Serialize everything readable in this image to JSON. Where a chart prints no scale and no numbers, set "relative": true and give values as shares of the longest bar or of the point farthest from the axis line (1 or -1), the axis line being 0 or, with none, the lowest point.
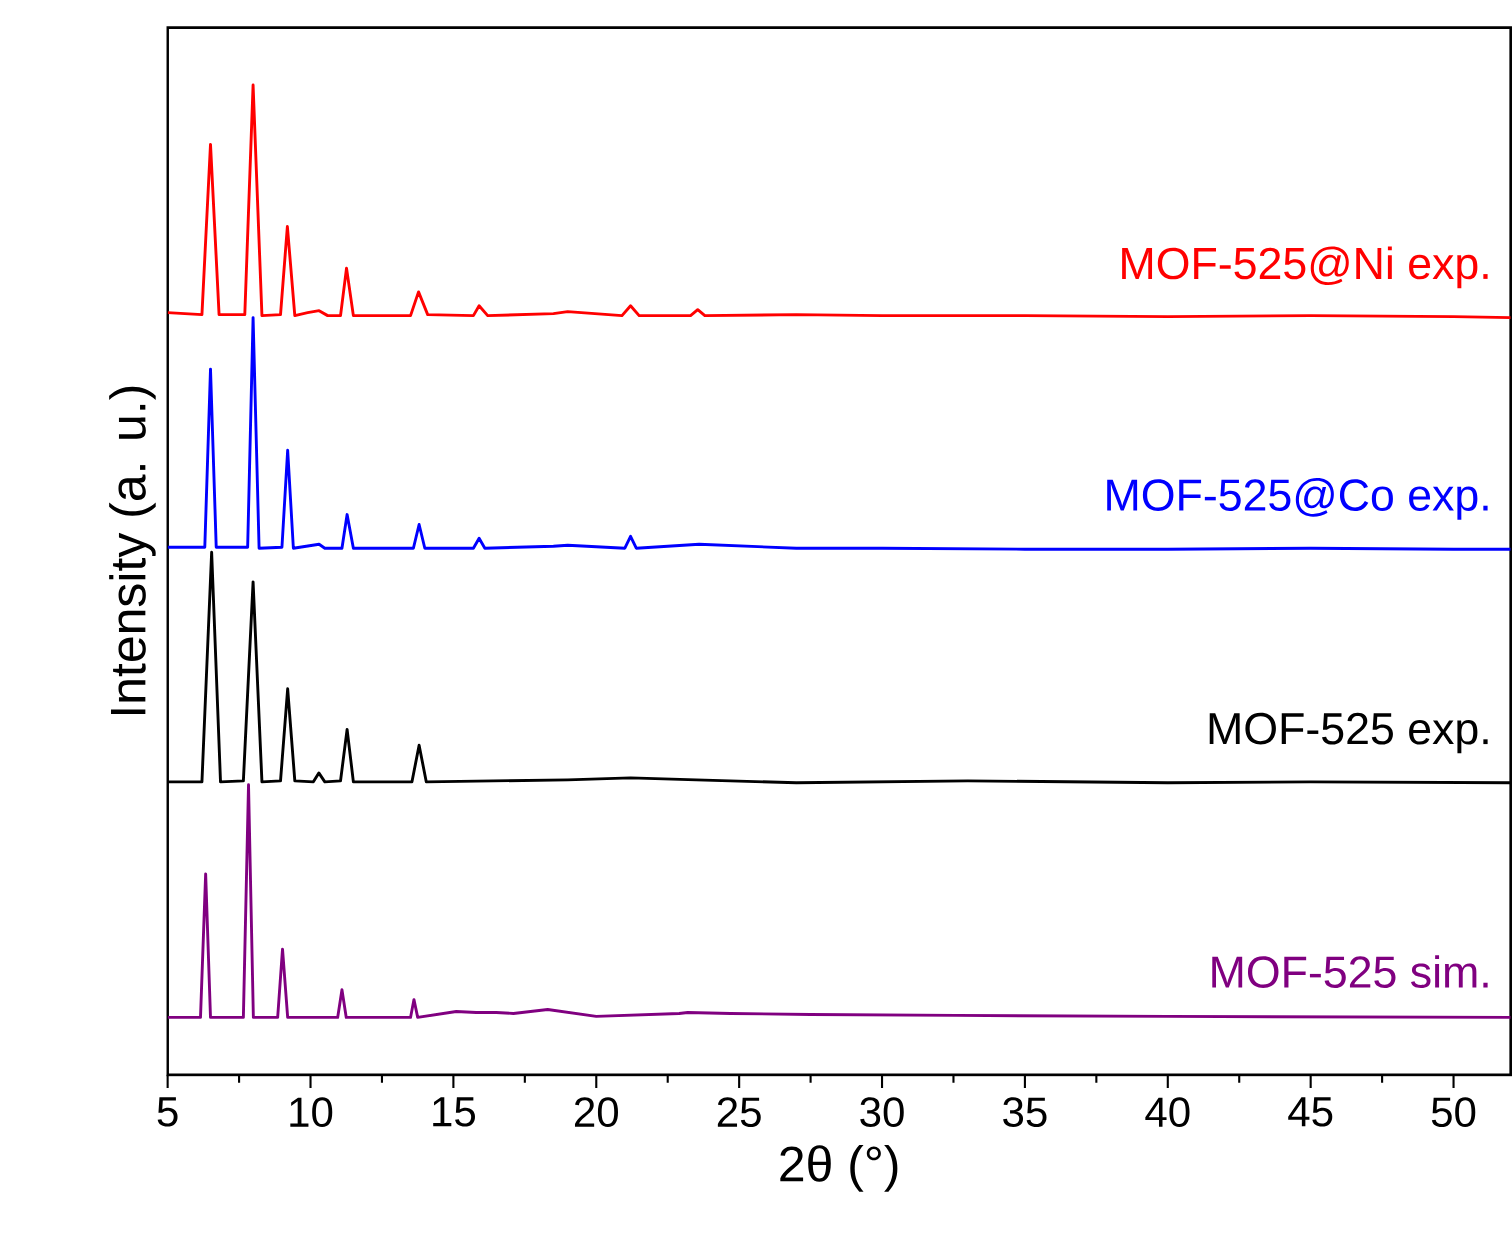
{
  "chart_data": {
    "type": "line",
    "xlabel": "2θ (°)",
    "ylabel": "Intensity (a. u.)",
    "relative": true,
    "tick_labels": "x",
    "xlim": [
      5,
      52
    ],
    "xticks": [
      5,
      10,
      15,
      20,
      25,
      30,
      35,
      40,
      45,
      50
    ],
    "series": [
      {
        "name": "MOF-525@Ni exp.",
        "color": "#ff0000",
        "x": [
          5.0,
          6.2,
          6.5,
          6.8,
          7.7,
          7.99,
          8.3,
          8.95,
          9.19,
          9.45,
          9.9,
          10.3,
          10.6,
          11.05,
          11.26,
          11.5,
          13.5,
          13.78,
          14.1,
          15.7,
          15.9,
          16.2,
          18.5,
          19.0,
          20.9,
          21.2,
          21.5,
          23.3,
          23.55,
          23.8,
          27,
          30,
          35,
          40,
          45,
          50,
          52
        ],
        "values": [
          0.77,
          0.768,
          0.94,
          0.768,
          0.768,
          1.0,
          0.767,
          0.768,
          0.857,
          0.767,
          0.77,
          0.772,
          0.767,
          0.767,
          0.815,
          0.767,
          0.767,
          0.791,
          0.768,
          0.767,
          0.777,
          0.767,
          0.769,
          0.771,
          0.767,
          0.777,
          0.767,
          0.767,
          0.773,
          0.767,
          0.768,
          0.767,
          0.767,
          0.766,
          0.767,
          0.766,
          0.765
        ]
      },
      {
        "name": "MOF-525@Co exp.",
        "color": "#0000ff",
        "x": [
          5.0,
          6.3,
          6.5,
          6.7,
          7.8,
          7.99,
          8.2,
          9.0,
          9.2,
          9.4,
          10.3,
          10.5,
          11.1,
          11.28,
          11.5,
          13.6,
          13.8,
          14.0,
          15.7,
          15.9,
          16.1,
          18.5,
          19,
          21.0,
          21.2,
          21.4,
          23.6,
          27,
          30,
          35,
          40,
          45,
          50,
          52
        ],
        "values": [
          0.533,
          0.533,
          0.713,
          0.533,
          0.533,
          0.765,
          0.532,
          0.533,
          0.631,
          0.532,
          0.536,
          0.532,
          0.532,
          0.566,
          0.532,
          0.532,
          0.556,
          0.532,
          0.532,
          0.542,
          0.532,
          0.534,
          0.535,
          0.532,
          0.544,
          0.532,
          0.536,
          0.532,
          0.532,
          0.531,
          0.531,
          0.532,
          0.531,
          0.531
        ]
      },
      {
        "name": "MOF-525 exp.",
        "color": "#000000",
        "x": [
          5.0,
          6.2,
          6.54,
          6.85,
          7.65,
          7.99,
          8.3,
          8.95,
          9.2,
          9.45,
          10.1,
          10.29,
          10.5,
          11.05,
          11.28,
          11.5,
          13.55,
          13.8,
          14.05,
          19,
          21.2,
          23.5,
          27,
          33,
          40,
          45,
          52
        ],
        "values": [
          0.296,
          0.296,
          0.528,
          0.296,
          0.297,
          0.498,
          0.296,
          0.297,
          0.39,
          0.297,
          0.296,
          0.305,
          0.296,
          0.297,
          0.349,
          0.296,
          0.296,
          0.333,
          0.296,
          0.298,
          0.3,
          0.298,
          0.295,
          0.297,
          0.295,
          0.296,
          0.295
        ]
      },
      {
        "name": "MOF-525 sim.",
        "color": "#800080",
        "x": [
          5.0,
          6.15,
          6.33,
          6.5,
          7.65,
          7.83,
          8.0,
          8.85,
          9.02,
          9.2,
          10.95,
          11.1,
          11.25,
          13.5,
          13.62,
          13.75,
          15.1,
          15.8,
          16.5,
          17.1,
          18.3,
          20,
          22.9,
          23.2,
          24.7,
          27.5,
          32.6,
          40,
          52
        ],
        "values": [
          0.058,
          0.058,
          0.203,
          0.058,
          0.058,
          0.293,
          0.058,
          0.058,
          0.127,
          0.058,
          0.058,
          0.086,
          0.058,
          0.058,
          0.076,
          0.058,
          0.064,
          0.063,
          0.063,
          0.062,
          0.066,
          0.059,
          0.062,
          0.063,
          0.062,
          0.061,
          0.06,
          0.059,
          0.058
        ]
      }
    ]
  }
}
